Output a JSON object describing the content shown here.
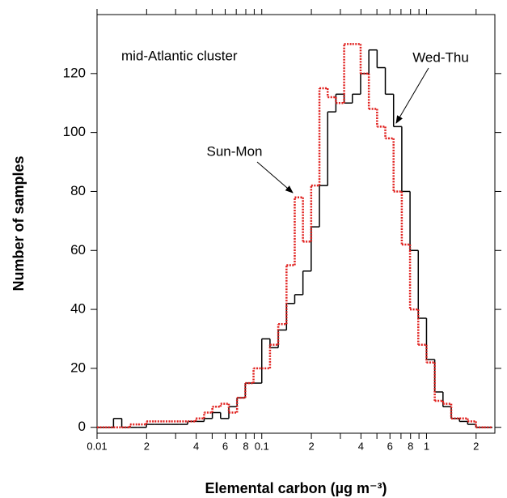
{
  "chart_data": {
    "type": "step-histogram",
    "x_label": "Elemental carbon (µg m⁻³)",
    "y_label": "Number of samples",
    "annotation": "mid-Atlantic cluster",
    "x_log": true,
    "xlim": [
      0.01,
      2.6
    ],
    "ylim": [
      -2,
      140
    ],
    "xticks": [
      0.01,
      {
        "value": 0.02,
        "label": "2"
      },
      {
        "value": 0.04,
        "label": "4"
      },
      {
        "value": 0.06,
        "label": "6"
      },
      {
        "value": 0.08,
        "label": "8"
      },
      0.1,
      {
        "value": 0.2,
        "label": "2"
      },
      {
        "value": 0.4,
        "label": "4"
      },
      {
        "value": 0.6,
        "label": "6"
      },
      {
        "value": 0.8,
        "label": "8"
      },
      1,
      2
    ],
    "x_minor_ticks": [
      0.03,
      0.05,
      0.07,
      0.09,
      0.3,
      0.5,
      0.7,
      0.9
    ],
    "yticks": [
      0,
      20,
      40,
      60,
      80,
      100,
      120
    ],
    "bins": [
      0.01,
      0.01122,
      0.01259,
      0.01413,
      0.01585,
      0.01778,
      0.01995,
      0.02239,
      0.02512,
      0.02818,
      0.03162,
      0.03548,
      0.03981,
      0.04467,
      0.05012,
      0.05623,
      0.0631,
      0.07079,
      0.07943,
      0.08913,
      0.1,
      0.1122,
      0.1259,
      0.1413,
      0.1585,
      0.1778,
      0.1995,
      0.2239,
      0.2512,
      0.2818,
      0.3162,
      0.3548,
      0.3981,
      0.4467,
      0.5012,
      0.5623,
      0.631,
      0.7079,
      0.7943,
      0.8913,
      1,
      1.122,
      1.259,
      1.413,
      1.585,
      1.778,
      1.995,
      2.239,
      2.512
    ],
    "series": [
      {
        "name": "Wed-Thu",
        "color": "#000000",
        "dashed": false,
        "values": [
          0,
          0,
          3,
          0,
          0,
          0,
          1,
          1,
          1,
          1,
          1,
          2,
          2,
          3,
          5,
          3,
          7,
          10,
          15,
          15,
          30,
          27,
          33,
          42,
          45,
          53,
          68,
          82,
          107,
          113,
          110,
          113,
          120,
          128,
          122,
          113,
          102,
          80,
          60,
          37,
          23,
          12,
          7,
          3,
          2,
          1,
          0,
          0
        ]
      },
      {
        "name": "Sun-Mon",
        "color": "#e0201e",
        "dashed": true,
        "values": [
          0,
          0,
          0,
          0,
          1,
          1,
          2,
          2,
          2,
          2,
          2,
          2,
          3,
          5,
          7,
          8,
          5,
          10,
          15,
          20,
          20,
          28,
          35,
          55,
          78,
          63,
          82,
          115,
          112,
          110,
          130,
          130,
          120,
          108,
          102,
          98,
          80,
          62,
          40,
          28,
          22,
          9,
          8,
          3,
          3,
          2,
          0,
          0
        ]
      }
    ]
  }
}
